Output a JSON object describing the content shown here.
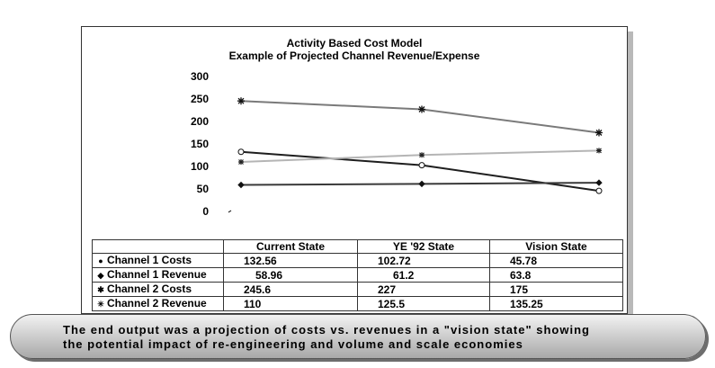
{
  "chart_data": {
    "type": "line",
    "title": "Activity Based Cost Model",
    "subtitle": "Example of Projected Channel Revenue/Expense",
    "categories": [
      "Current State",
      "YE '92 State",
      "Vision State"
    ],
    "ylim": [
      0,
      300
    ],
    "yticks": [
      "300",
      "250",
      "200",
      "150",
      "100",
      "50",
      "0"
    ],
    "grid": false,
    "legend": "table-left",
    "series": [
      {
        "name": "Channel 1 Costs",
        "values": [
          132.56,
          102.72,
          45.78
        ],
        "labels": [
          "132.56",
          "102.72",
          "45.78"
        ],
        "color": "#1e1e1e",
        "marker": "circle"
      },
      {
        "name": "Channel 1 Revenue",
        "values": [
          58.96,
          61.2,
          63.8
        ],
        "labels": [
          "58.96",
          "61.2",
          "63.8"
        ],
        "color": "#3a3a3a",
        "marker": "diamond"
      },
      {
        "name": "Channel 2 Costs",
        "values": [
          245.6,
          227,
          175
        ],
        "labels": [
          "245.6",
          "227",
          "175"
        ],
        "color": "#7a7a7a",
        "marker": "star"
      },
      {
        "name": "Channel 2 Revenue",
        "values": [
          110,
          125.5,
          135.25
        ],
        "labels": [
          "110",
          "125.5",
          "135.25"
        ],
        "color": "#b5b5b5",
        "marker": "asterisk"
      }
    ]
  },
  "caption": {
    "line1": "The end output was a projection of costs vs. revenues in a \"vision state\" showing",
    "line2": "the potential impact of  re-engineering and volume and scale economies"
  }
}
